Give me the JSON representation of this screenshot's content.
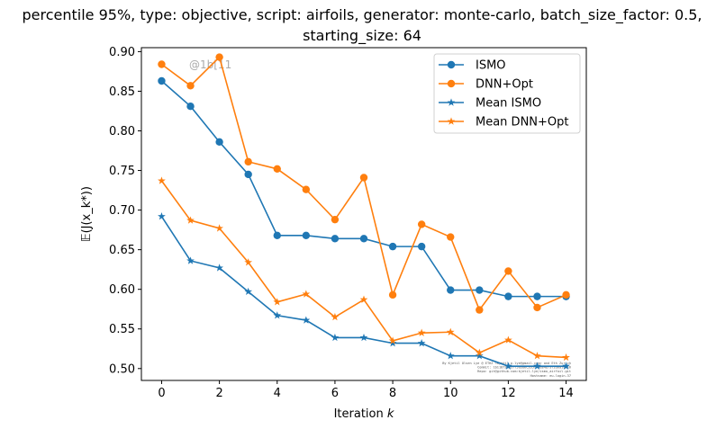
{
  "chart_data": {
    "type": "line",
    "title_line1": "percentile 95%, type: objective, script: airfoils, generator: monte-carlo, batch_size_factor: 0.5,",
    "title_line2": "starting_size: 64",
    "xlabel": "Iteration k",
    "ylabel": "𝔼(J(x_k*))",
    "x": [
      0,
      1,
      2,
      3,
      4,
      5,
      6,
      7,
      8,
      9,
      10,
      11,
      12,
      13,
      14
    ],
    "xlim": [
      -0.7,
      14.7
    ],
    "ylim": [
      0.485,
      0.905
    ],
    "xticks": [
      0,
      2,
      4,
      6,
      8,
      10,
      12,
      14
    ],
    "yticks": [
      0.5,
      0.55,
      0.6,
      0.65,
      0.7,
      0.75,
      0.8,
      0.85,
      0.9
    ],
    "ytick_labels": [
      "0.50",
      "0.55",
      "0.60",
      "0.65",
      "0.70",
      "0.75",
      "0.80",
      "0.85",
      "0.90"
    ],
    "legend_position": "top-right",
    "series": [
      {
        "name": "ISMO",
        "color": "#1f77b4",
        "marker": "circle",
        "values": [
          0.863,
          0.831,
          0.786,
          0.745,
          0.668,
          0.668,
          0.664,
          0.664,
          0.654,
          0.654,
          0.599,
          0.599,
          0.591,
          0.591,
          0.591
        ]
      },
      {
        "name": "DNN+Opt",
        "color": "#ff7f0e",
        "marker": "circle",
        "values": [
          0.884,
          0.857,
          0.893,
          0.761,
          0.752,
          0.726,
          0.688,
          0.741,
          0.593,
          0.682,
          0.666,
          0.574,
          0.623,
          0.577,
          0.593
        ]
      },
      {
        "name": "Mean ISMO",
        "color": "#1f77b4",
        "marker": "star",
        "values": [
          0.692,
          0.636,
          0.627,
          0.597,
          0.567,
          0.561,
          0.539,
          0.539,
          0.532,
          0.532,
          0.516,
          0.516,
          0.503,
          0.503,
          0.503
        ]
      },
      {
        "name": "Mean DNN+Opt",
        "color": "#ff7f0e",
        "marker": "star",
        "values": [
          0.737,
          0.687,
          0.677,
          0.634,
          0.584,
          0.594,
          0.565,
          0.587,
          0.535,
          0.545,
          0.546,
          0.52,
          0.536,
          0.516,
          0.514
        ]
      }
    ],
    "watermark": "@1b[11",
    "footer_note": [
      "By Kjetil Olsen Lye @ ETHZ <kjetil.o.lye@gmail.com> and Eth Zurich",
      "Commit: 1b11873b637f5a3d6c2b5ff8e84b73f2d6a1c8e6",
      "Repo: git@github.com:kjetil-lye/ismo_airfoil.git",
      "Hostname: eu-login-37"
    ]
  }
}
